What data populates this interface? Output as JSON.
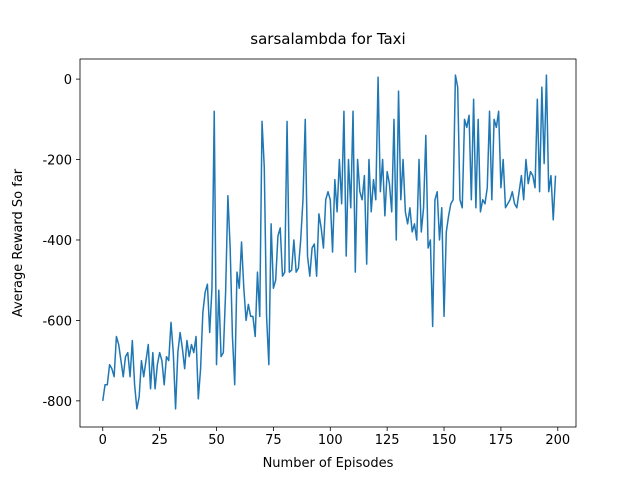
{
  "chart_data": {
    "type": "line",
    "title": "sarsalambda for Taxi",
    "x_label": "Number of Episodes",
    "y_label": "Average Reward So far",
    "color": "#1f77b4",
    "x": [
      0,
      1,
      2,
      3,
      4,
      5,
      6,
      7,
      8,
      9,
      10,
      11,
      12,
      13,
      14,
      15,
      16,
      17,
      18,
      19,
      20,
      21,
      22,
      23,
      24,
      25,
      26,
      27,
      28,
      29,
      30,
      31,
      32,
      33,
      34,
      35,
      36,
      37,
      38,
      39,
      40,
      41,
      42,
      43,
      44,
      45,
      46,
      47,
      48,
      49,
      50,
      51,
      52,
      53,
      54,
      55,
      56,
      57,
      58,
      59,
      60,
      61,
      62,
      63,
      64,
      65,
      66,
      67,
      68,
      69,
      70,
      71,
      72,
      73,
      74,
      75,
      76,
      77,
      78,
      79,
      80,
      81,
      82,
      83,
      84,
      85,
      86,
      87,
      88,
      89,
      90,
      91,
      92,
      93,
      94,
      95,
      96,
      97,
      98,
      99,
      100,
      101,
      102,
      103,
      104,
      105,
      106,
      107,
      108,
      109,
      110,
      111,
      112,
      113,
      114,
      115,
      116,
      117,
      118,
      119,
      120,
      121,
      122,
      123,
      124,
      125,
      126,
      127,
      128,
      129,
      130,
      131,
      132,
      133,
      134,
      135,
      136,
      137,
      138,
      139,
      140,
      141,
      142,
      143,
      144,
      145,
      146,
      147,
      148,
      149,
      150,
      151,
      152,
      153,
      154,
      155,
      156,
      157,
      158,
      159,
      160,
      161,
      162,
      163,
      164,
      165,
      166,
      167,
      168,
      169,
      170,
      171,
      172,
      173,
      174,
      175,
      176,
      177,
      178,
      179,
      180,
      181,
      182,
      183,
      184,
      185,
      186,
      187,
      188,
      189,
      190,
      191,
      192,
      193,
      194,
      195,
      196,
      197,
      198,
      199
    ],
    "values": [
      -800,
      -760,
      -760,
      -710,
      -720,
      -740,
      -640,
      -660,
      -700,
      -740,
      -690,
      -680,
      -740,
      -650,
      -760,
      -820,
      -790,
      -700,
      -740,
      -700,
      -660,
      -770,
      -680,
      -770,
      -710,
      -680,
      -700,
      -760,
      -690,
      -700,
      -605,
      -680,
      -820,
      -680,
      -630,
      -670,
      -720,
      -650,
      -690,
      -660,
      -680,
      -640,
      -795,
      -720,
      -580,
      -530,
      -510,
      -630,
      -520,
      -80,
      -710,
      -525,
      -690,
      -680,
      -530,
      -290,
      -420,
      -640,
      -760,
      -480,
      -520,
      -405,
      -520,
      -600,
      -560,
      -590,
      -590,
      -640,
      -480,
      -590,
      -105,
      -220,
      -590,
      -710,
      -360,
      -520,
      -500,
      -390,
      -370,
      -490,
      -480,
      -105,
      -480,
      -475,
      -400,
      -480,
      -470,
      -400,
      -300,
      -100,
      -440,
      -490,
      -420,
      -410,
      -490,
      -335,
      -370,
      -420,
      -300,
      -280,
      -300,
      -430,
      -250,
      -330,
      -200,
      -310,
      -80,
      -440,
      -200,
      -320,
      -80,
      -480,
      -200,
      -280,
      -300,
      -240,
      -460,
      -200,
      -330,
      -250,
      -300,
      5,
      -280,
      -200,
      -340,
      -230,
      -260,
      -330,
      -100,
      -400,
      -30,
      -300,
      -200,
      -330,
      -360,
      -320,
      -380,
      -360,
      -400,
      -200,
      -380,
      -320,
      -140,
      -420,
      -400,
      -615,
      -300,
      -280,
      -400,
      -320,
      -590,
      -380,
      -340,
      -310,
      -300,
      10,
      -20,
      -300,
      -320,
      -100,
      -120,
      -90,
      -300,
      -50,
      -320,
      -100,
      -330,
      -300,
      -310,
      -270,
      -80,
      -300,
      -100,
      -120,
      -80,
      -270,
      -200,
      -320,
      -310,
      -300,
      -280,
      -310,
      -320,
      -280,
      -240,
      -300,
      -200,
      -260,
      -230,
      -240,
      -270,
      -50,
      -280,
      -20,
      -210,
      10,
      -280,
      -240,
      -350,
      -240
    ],
    "xlim": [
      -10,
      208
    ],
    "ylim": [
      -865,
      50
    ],
    "xticks": [
      0,
      25,
      50,
      75,
      100,
      125,
      150,
      175,
      200
    ],
    "yticks": [
      -800,
      -600,
      -400,
      -200,
      0
    ]
  }
}
